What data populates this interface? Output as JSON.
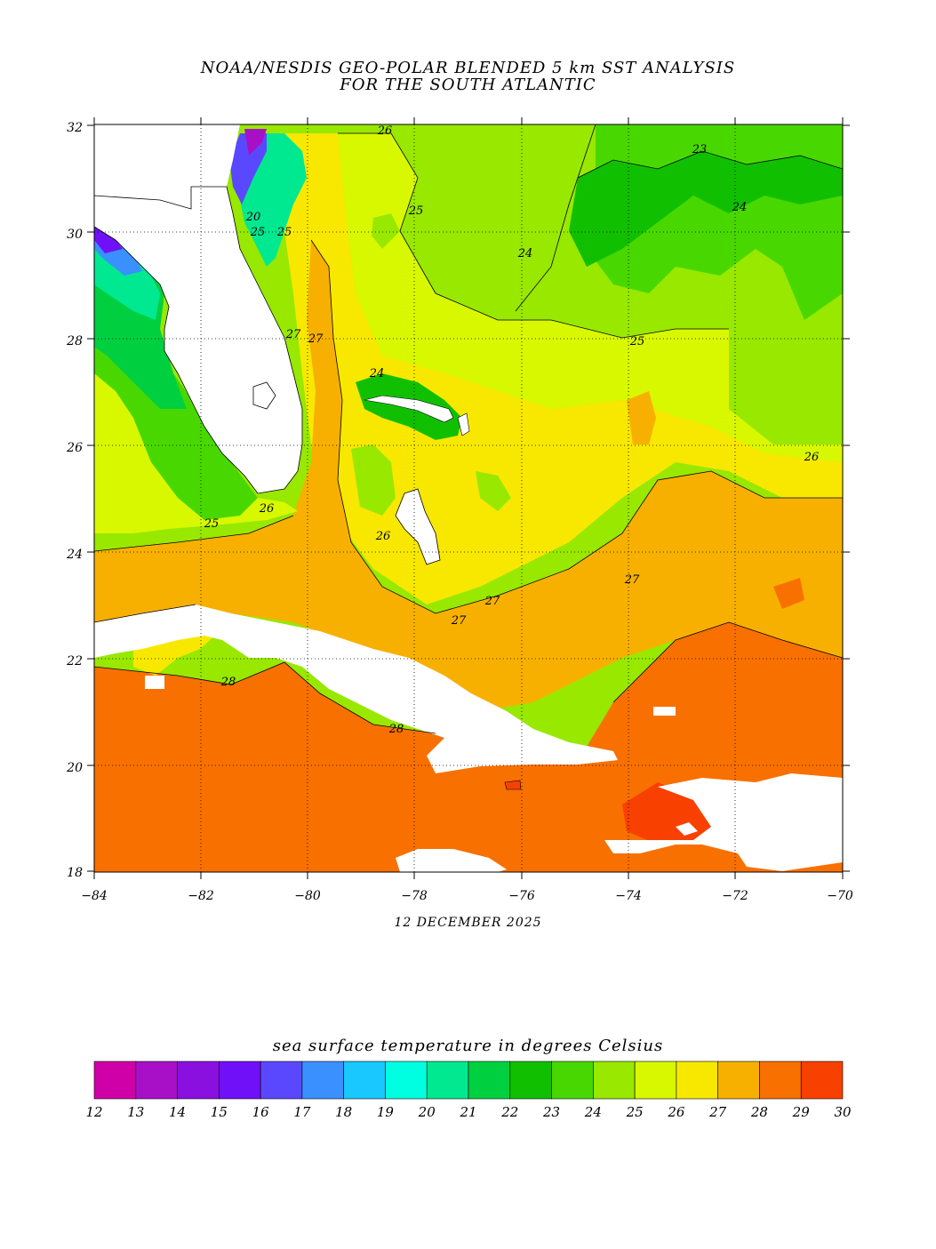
{
  "title_line1": "NOAA/NESDIS GEO-POLAR BLENDED 5 km SST ANALYSIS",
  "title_line2": "FOR THE SOUTH ATLANTIC",
  "date": "12 DECEMBER 2025",
  "lat_labels": [
    "32",
    "30",
    "28",
    "26",
    "24",
    "22",
    "20",
    "18"
  ],
  "lon_labels": [
    "−84",
    "−82",
    "−80",
    "−78",
    "−76",
    "−74",
    "−72",
    "−70"
  ],
  "contour_labels": [
    "26",
    "25",
    "23",
    "24",
    "24",
    "25",
    "27",
    "25",
    "27",
    "24",
    "25",
    "26",
    "26",
    "25",
    "26",
    "27",
    "27",
    "27",
    "28",
    "28",
    "20"
  ],
  "legend": {
    "title": "sea surface temperature in degrees Celsius",
    "ticks": [
      "12",
      "13",
      "14",
      "15",
      "16",
      "17",
      "18",
      "19",
      "20",
      "21",
      "22",
      "23",
      "24",
      "25",
      "26",
      "27",
      "28",
      "29",
      "30"
    ],
    "colors": [
      "#d000a8",
      "#a810c8",
      "#8a10e0",
      "#7010f8",
      "#5a48ff",
      "#3a90ff",
      "#18c8ff",
      "#00ffe0",
      "#00e890",
      "#00d040",
      "#10c000",
      "#48d800",
      "#98e800",
      "#d8f800",
      "#f8e800",
      "#f8b000",
      "#f87000",
      "#f84000"
    ]
  },
  "colors": {
    "land": "#ffffff",
    "t21": "#00d040",
    "t22": "#10c000",
    "t23": "#48d800",
    "t24": "#98e800",
    "t25": "#d8f800",
    "t26": "#f8e800",
    "t27": "#f8b000",
    "t28": "#f87000",
    "t29": "#f84000"
  }
}
